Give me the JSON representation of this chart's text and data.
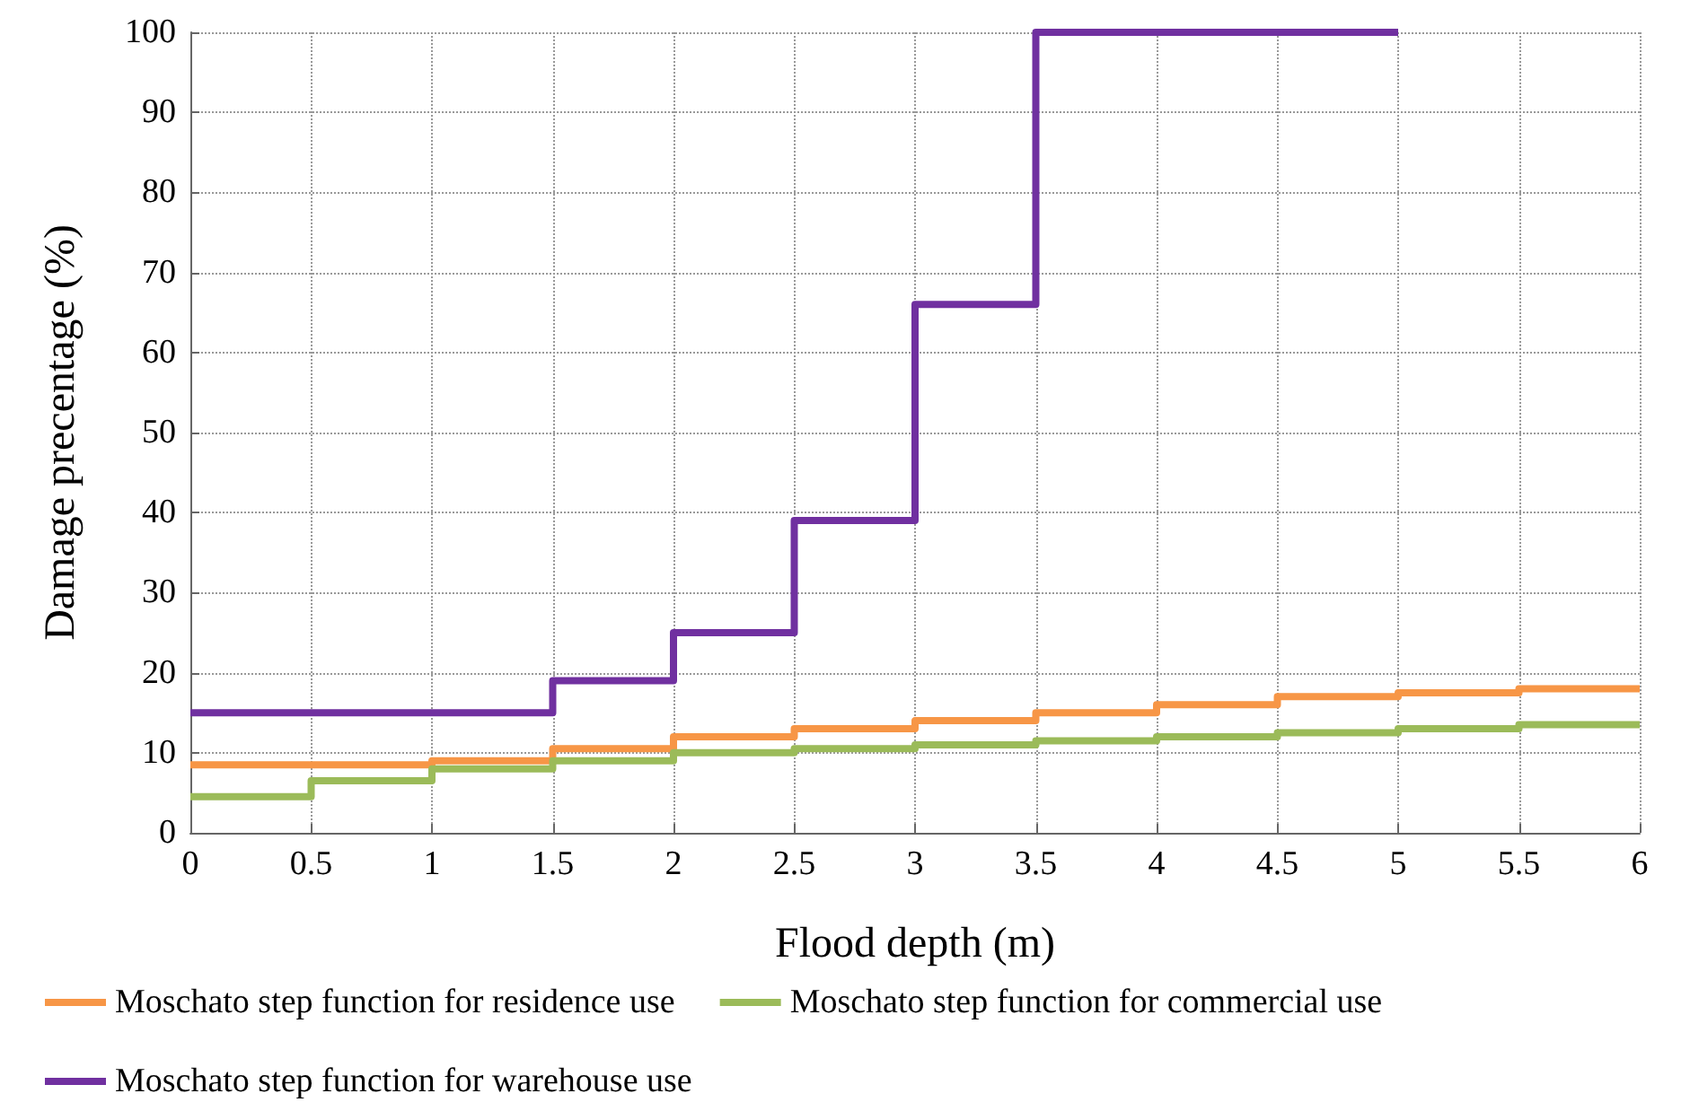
{
  "chart_data": {
    "type": "step",
    "xlabel": "Flood depth (m)",
    "ylabel": "Damage precentage (%)",
    "xlim": [
      0,
      6
    ],
    "xticks": [
      0,
      0.5,
      1,
      1.5,
      2,
      2.5,
      3,
      3.5,
      4,
      4.5,
      5,
      5.5,
      6
    ],
    "ylim": [
      0,
      100
    ],
    "yticks": [
      0,
      10,
      20,
      30,
      40,
      50,
      60,
      70,
      80,
      90,
      100
    ],
    "grid": true,
    "legend": "bottom",
    "marker": "none",
    "line_style": "solid",
    "series": [
      {
        "name": "Moschato step function for residence use",
        "color": "#f79646",
        "x": [
          0,
          1,
          1.5,
          2,
          2.5,
          3,
          3.5,
          4,
          4.5,
          5,
          5.5,
          6
        ],
        "values": [
          8.5,
          9,
          10.5,
          12,
          13,
          14,
          15,
          16,
          17,
          17.5,
          18,
          18
        ]
      },
      {
        "name": "Moschato step function for commercial use",
        "color": "#9bbb59",
        "x": [
          0,
          0.5,
          1,
          1.5,
          2,
          2.5,
          3,
          3.5,
          4,
          4.5,
          5,
          5.5,
          6
        ],
        "values": [
          4.5,
          6.5,
          8,
          9,
          10,
          10.5,
          11,
          11.5,
          12,
          12.5,
          13,
          13.5,
          13.5
        ]
      },
      {
        "name": "Moschato step function for warehouse use",
        "color": "#7030a0",
        "x": [
          0,
          1.5,
          2,
          2.5,
          3,
          3.5,
          5
        ],
        "values": [
          15,
          19,
          25,
          39,
          66,
          100,
          100
        ]
      }
    ]
  }
}
